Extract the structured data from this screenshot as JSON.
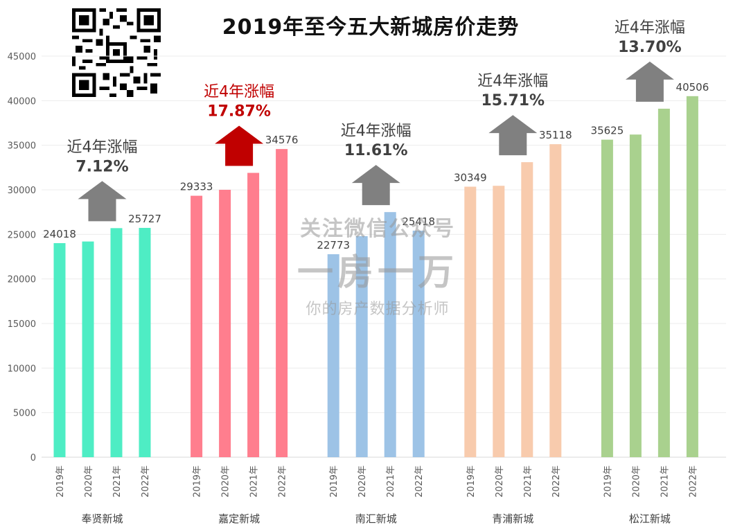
{
  "chart_data": {
    "type": "bar",
    "title": "2019年至今五大新城房价走势",
    "ylim": [
      0,
      45000
    ],
    "y_ticks": [
      0,
      5000,
      10000,
      15000,
      20000,
      25000,
      30000,
      35000,
      40000,
      45000
    ],
    "grid": true,
    "groups": [
      {
        "name": "奉贤新城",
        "years": [
          "2019年",
          "2020年",
          "2021年",
          "2022年"
        ],
        "values": [
          24018,
          24200,
          25700,
          25727
        ],
        "labels": {
          "0": "24018",
          "3": "25727"
        },
        "growth_label": "近4年涨幅",
        "growth_value": "7.12%",
        "color": "#4EEDC4",
        "highlight": false
      },
      {
        "name": "嘉定新城",
        "years": [
          "2019年",
          "2020年",
          "2021年",
          "2022年"
        ],
        "values": [
          29333,
          30000,
          31900,
          34576
        ],
        "labels": {
          "0": "29333",
          "3": "34576"
        },
        "growth_label": "近4年涨幅",
        "growth_value": "17.87%",
        "color": "#FF7E8E",
        "highlight": true
      },
      {
        "name": "南汇新城",
        "years": [
          "2019年",
          "2020年",
          "2021年",
          "2022年"
        ],
        "values": [
          22773,
          24800,
          27500,
          25418
        ],
        "labels": {
          "0": "22773",
          "3": "25418"
        },
        "growth_label": "近4年涨幅",
        "growth_value": "11.61%",
        "color": "#9DC3E6",
        "highlight": false
      },
      {
        "name": "青浦新城",
        "years": [
          "2019年",
          "2020年",
          "2021年",
          "2022年"
        ],
        "values": [
          30349,
          30450,
          33100,
          35118
        ],
        "labels": {
          "0": "30349",
          "3": "35118"
        },
        "growth_label": "近4年涨幅",
        "growth_value": "15.71%",
        "color": "#F8CBAD",
        "highlight": false
      },
      {
        "name": "松江新城",
        "years": [
          "2019年",
          "2020年",
          "2021年",
          "2022年"
        ],
        "values": [
          35625,
          36200,
          39100,
          40506
        ],
        "labels": {
          "0": "35625",
          "3": "40506"
        },
        "growth_label": "近4年涨幅",
        "growth_value": "13.70%",
        "color": "#A9D18E",
        "highlight": false
      }
    ],
    "colors": {
      "arrow_gray": "#808080",
      "arrow_highlight": "#C00000",
      "text_highlight": "#C00000",
      "text_normal": "#404040"
    }
  },
  "watermark": {
    "line1": "关注微信公众号",
    "line2": "一房一万",
    "line3": "你的房产数据分析师"
  },
  "qr_code": {
    "icon": "qr-code-icon"
  }
}
